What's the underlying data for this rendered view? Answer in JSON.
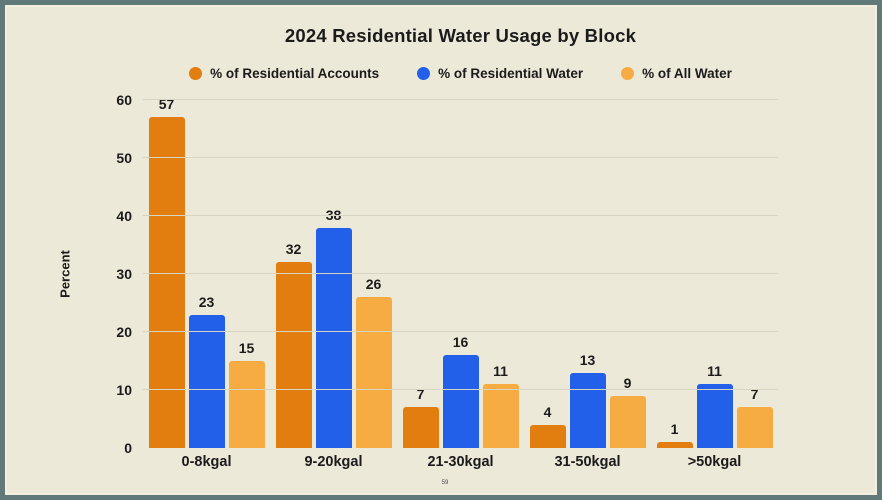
{
  "frame": {
    "background_color": "#ece9d8",
    "border_color": "#62797a"
  },
  "footer": {
    "page_number": "59"
  },
  "chart_data": {
    "type": "bar",
    "title": "2024 Residential Water Usage by Block",
    "categories": [
      "0-8kgal",
      "9-20kgal",
      "21-30kgal",
      "31-50kgal",
      ">50kgal"
    ],
    "series": [
      {
        "name": "% of Residential Accounts",
        "color": "#e27d0f",
        "values": [
          57,
          32,
          7,
          4,
          1
        ]
      },
      {
        "name": "% of Residential Water",
        "color": "#2360e9",
        "values": [
          23,
          38,
          16,
          13,
          11
        ]
      },
      {
        "name": "% of All Water",
        "color": "#f6ac43",
        "values": [
          15,
          26,
          11,
          9,
          7
        ]
      }
    ],
    "xlabel": "",
    "ylabel": "Percent",
    "ylim": [
      0,
      60
    ],
    "yticks": [
      0,
      10,
      20,
      30,
      40,
      50,
      60
    ],
    "grid": true,
    "legend_position": "top",
    "value_labels": true,
    "text_color": "#1b1b1b",
    "gridline_color": "#d7d4c4"
  }
}
